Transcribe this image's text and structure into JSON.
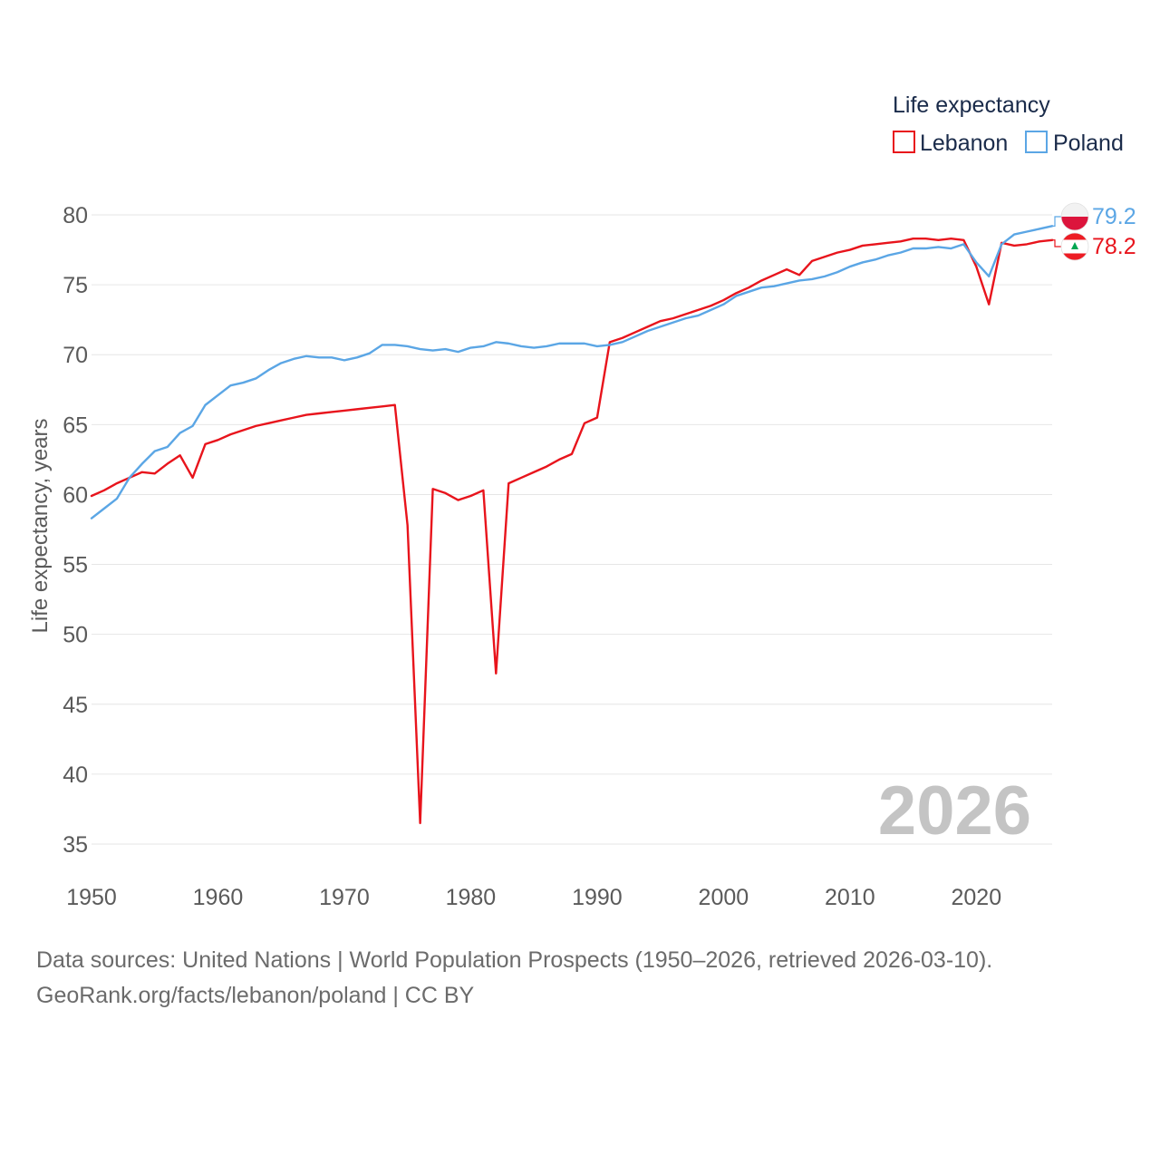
{
  "chart_data": {
    "type": "line",
    "legend_title": "Life expectancy",
    "ylabel": "Life expectancy, years",
    "xlabel": "",
    "xlim": [
      1950,
      2026
    ],
    "ylim": [
      35,
      80
    ],
    "x_ticks": [
      1950,
      1960,
      1970,
      1980,
      1990,
      2000,
      2010,
      2020
    ],
    "y_ticks": [
      35,
      40,
      45,
      50,
      55,
      60,
      65,
      70,
      75,
      80
    ],
    "grid": true,
    "legend_position": "top-right",
    "year_watermark": "2026",
    "series": [
      {
        "name": "Lebanon",
        "color": "#e8141c",
        "flag": "lebanon-flag-icon",
        "end_label": "78.2",
        "points": [
          [
            1950,
            59.9
          ],
          [
            1951,
            60.3
          ],
          [
            1952,
            60.8
          ],
          [
            1953,
            61.2
          ],
          [
            1954,
            61.6
          ],
          [
            1955,
            61.5
          ],
          [
            1956,
            62.2
          ],
          [
            1957,
            62.8
          ],
          [
            1958,
            61.2
          ],
          [
            1959,
            63.6
          ],
          [
            1960,
            63.9
          ],
          [
            1961,
            64.3
          ],
          [
            1962,
            64.6
          ],
          [
            1963,
            64.9
          ],
          [
            1964,
            65.1
          ],
          [
            1965,
            65.3
          ],
          [
            1966,
            65.5
          ],
          [
            1967,
            65.7
          ],
          [
            1968,
            65.8
          ],
          [
            1969,
            65.9
          ],
          [
            1970,
            66.0
          ],
          [
            1971,
            66.1
          ],
          [
            1972,
            66.2
          ],
          [
            1973,
            66.3
          ],
          [
            1974,
            66.4
          ],
          [
            1975,
            57.8
          ],
          [
            1976,
            36.5
          ],
          [
            1977,
            60.4
          ],
          [
            1978,
            60.1
          ],
          [
            1979,
            59.6
          ],
          [
            1980,
            59.9
          ],
          [
            1981,
            60.3
          ],
          [
            1982,
            47.2
          ],
          [
            1983,
            60.8
          ],
          [
            1984,
            61.2
          ],
          [
            1985,
            61.6
          ],
          [
            1986,
            62.0
          ],
          [
            1987,
            62.5
          ],
          [
            1988,
            62.9
          ],
          [
            1989,
            65.1
          ],
          [
            1990,
            65.5
          ],
          [
            1991,
            70.9
          ],
          [
            1992,
            71.2
          ],
          [
            1993,
            71.6
          ],
          [
            1994,
            72.0
          ],
          [
            1995,
            72.4
          ],
          [
            1996,
            72.6
          ],
          [
            1997,
            72.9
          ],
          [
            1998,
            73.2
          ],
          [
            1999,
            73.5
          ],
          [
            2000,
            73.9
          ],
          [
            2001,
            74.4
          ],
          [
            2002,
            74.8
          ],
          [
            2003,
            75.3
          ],
          [
            2004,
            75.7
          ],
          [
            2005,
            76.1
          ],
          [
            2006,
            75.7
          ],
          [
            2007,
            76.7
          ],
          [
            2008,
            77.0
          ],
          [
            2009,
            77.3
          ],
          [
            2010,
            77.5
          ],
          [
            2011,
            77.8
          ],
          [
            2012,
            77.9
          ],
          [
            2013,
            78.0
          ],
          [
            2014,
            78.1
          ],
          [
            2015,
            78.3
          ],
          [
            2016,
            78.3
          ],
          [
            2017,
            78.2
          ],
          [
            2018,
            78.3
          ],
          [
            2019,
            78.2
          ],
          [
            2020,
            76.3
          ],
          [
            2021,
            73.6
          ],
          [
            2022,
            78.0
          ],
          [
            2023,
            77.8
          ],
          [
            2024,
            77.9
          ],
          [
            2025,
            78.1
          ],
          [
            2026,
            78.2
          ]
        ]
      },
      {
        "name": "Poland",
        "color": "#5ba6e5",
        "flag": "poland-flag-icon",
        "end_label": "79.2",
        "points": [
          [
            1950,
            58.3
          ],
          [
            1951,
            59.0
          ],
          [
            1952,
            59.7
          ],
          [
            1953,
            61.2
          ],
          [
            1954,
            62.2
          ],
          [
            1955,
            63.1
          ],
          [
            1956,
            63.4
          ],
          [
            1957,
            64.4
          ],
          [
            1958,
            64.9
          ],
          [
            1959,
            66.4
          ],
          [
            1960,
            67.1
          ],
          [
            1961,
            67.8
          ],
          [
            1962,
            68.0
          ],
          [
            1963,
            68.3
          ],
          [
            1964,
            68.9
          ],
          [
            1965,
            69.4
          ],
          [
            1966,
            69.7
          ],
          [
            1967,
            69.9
          ],
          [
            1968,
            69.8
          ],
          [
            1969,
            69.8
          ],
          [
            1970,
            69.6
          ],
          [
            1971,
            69.8
          ],
          [
            1972,
            70.1
          ],
          [
            1973,
            70.7
          ],
          [
            1974,
            70.7
          ],
          [
            1975,
            70.6
          ],
          [
            1976,
            70.4
          ],
          [
            1977,
            70.3
          ],
          [
            1978,
            70.4
          ],
          [
            1979,
            70.2
          ],
          [
            1980,
            70.5
          ],
          [
            1981,
            70.6
          ],
          [
            1982,
            70.9
          ],
          [
            1983,
            70.8
          ],
          [
            1984,
            70.6
          ],
          [
            1985,
            70.5
          ],
          [
            1986,
            70.6
          ],
          [
            1987,
            70.8
          ],
          [
            1988,
            70.8
          ],
          [
            1989,
            70.8
          ],
          [
            1990,
            70.6
          ],
          [
            1991,
            70.7
          ],
          [
            1992,
            70.9
          ],
          [
            1993,
            71.3
          ],
          [
            1994,
            71.7
          ],
          [
            1995,
            72.0
          ],
          [
            1996,
            72.3
          ],
          [
            1997,
            72.6
          ],
          [
            1998,
            72.8
          ],
          [
            1999,
            73.2
          ],
          [
            2000,
            73.6
          ],
          [
            2001,
            74.2
          ],
          [
            2002,
            74.5
          ],
          [
            2003,
            74.8
          ],
          [
            2004,
            74.9
          ],
          [
            2005,
            75.1
          ],
          [
            2006,
            75.3
          ],
          [
            2007,
            75.4
          ],
          [
            2008,
            75.6
          ],
          [
            2009,
            75.9
          ],
          [
            2010,
            76.3
          ],
          [
            2011,
            76.6
          ],
          [
            2012,
            76.8
          ],
          [
            2013,
            77.1
          ],
          [
            2014,
            77.3
          ],
          [
            2015,
            77.6
          ],
          [
            2016,
            77.6
          ],
          [
            2017,
            77.7
          ],
          [
            2018,
            77.6
          ],
          [
            2019,
            77.9
          ],
          [
            2020,
            76.6
          ],
          [
            2021,
            75.6
          ],
          [
            2022,
            77.9
          ],
          [
            2023,
            78.6
          ],
          [
            2024,
            78.8
          ],
          [
            2025,
            79.0
          ],
          [
            2026,
            79.2
          ]
        ]
      }
    ]
  },
  "footer": {
    "line1": "Data sources: United Nations | World Population Prospects (1950–2026, retrieved 2026-03-10).",
    "line2": "GeoRank.org/facts/lebanon/poland | CC BY"
  }
}
